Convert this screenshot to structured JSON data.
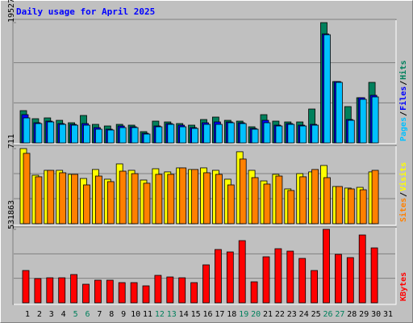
{
  "chart_data": [
    {
      "type": "bar",
      "title": "Daily usage for April 2025",
      "legend_separator": "/",
      "ylim": [
        0,
        19527
      ],
      "yticks": [
        19527
      ],
      "series": [
        {
          "name": "Hits",
          "color": "#00805c",
          "values": [
            5242,
            3932,
            4063,
            3669,
            3276,
            4456,
            3014,
            2752,
            3014,
            2883,
            1835,
            3538,
            3407,
            3145,
            2883,
            3800,
            4194,
            3669,
            3538,
            2621,
            4587,
            3538,
            3407,
            3407,
            5504,
            19527,
            9960,
            5897,
            7339,
            9829,
            null
          ]
        },
        {
          "name": "Files",
          "color": "#0000ff",
          "values": [
            4587,
            3276,
            3538,
            3145,
            3014,
            3145,
            2490,
            2228,
            2752,
            2621,
            1572,
            2752,
            3145,
            2883,
            2490,
            3276,
            3407,
            3407,
            3276,
            2359,
            3669,
            2883,
            3145,
            2883,
            3014,
            17692,
            9960,
            3800,
            7339,
            7732,
            null
          ]
        },
        {
          "name": "Pages",
          "color": "#00c0ff",
          "values": [
            4063,
            3145,
            3407,
            3014,
            2883,
            2883,
            2228,
            2097,
            2490,
            2490,
            1442,
            2621,
            3014,
            2621,
            2359,
            3014,
            3014,
            3276,
            3145,
            2228,
            3276,
            2752,
            3014,
            2752,
            2883,
            17561,
            9829,
            3669,
            7077,
            7470,
            null
          ]
        }
      ]
    },
    {
      "type": "bar",
      "legend_separator": "/",
      "ylim": [
        0,
        711
      ],
      "yticks": [
        711
      ],
      "series": [
        {
          "name": "Visits",
          "color": "#ffff00",
          "values": [
            711,
            459,
            505,
            505,
            467,
            428,
            513,
            421,
            566,
            505,
            413,
            520,
            490,
            528,
            513,
            528,
            505,
            421,
            681,
            505,
            405,
            467,
            329,
            474,
            490,
            551,
            352,
            337,
            344,
            490,
            null
          ]
        },
        {
          "name": "Sites",
          "color": "#ff8000",
          "values": [
            666,
            444,
            505,
            482,
            467,
            367,
            451,
            398,
            497,
            474,
            383,
            467,
            467,
            528,
            513,
            482,
            467,
            367,
            612,
            436,
            375,
            451,
            314,
            444,
            513,
            436,
            352,
            329,
            321,
            505,
            null
          ]
        }
      ]
    },
    {
      "type": "bar",
      "ylim": [
        0,
        531863
      ],
      "yticks": [
        531863
      ],
      "categories": [
        "1",
        "2",
        "3",
        "4",
        "5",
        "6",
        "7",
        "8",
        "9",
        "10",
        "11",
        "12",
        "13",
        "14",
        "15",
        "16",
        "17",
        "18",
        "19",
        "20",
        "21",
        "22",
        "23",
        "24",
        "25",
        "26",
        "27",
        "28",
        "29",
        "30",
        "31"
      ],
      "category_colors": [
        "#000000",
        "#000000",
        "#000000",
        "#000000",
        "#00805c",
        "#00805c",
        "#000000",
        "#000000",
        "#000000",
        "#000000",
        "#000000",
        "#00805c",
        "#00805c",
        "#000000",
        "#000000",
        "#000000",
        "#000000",
        "#000000",
        "#00805c",
        "#00805c",
        "#000000",
        "#000000",
        "#000000",
        "#000000",
        "#000000",
        "#00805c",
        "#00805c",
        "#000000",
        "#000000",
        "#000000",
        "#000000"
      ],
      "series": [
        {
          "name": "KBytes",
          "color": "#ff0000",
          "values": [
            233800,
            175350,
            181195,
            181195,
            204575,
            134435,
            163660,
            163660,
            146125,
            146125,
            122745,
            198730,
            187040,
            181195,
            146125,
            274715,
            385770,
            368235,
            450065,
            151970,
            333165,
            391615,
            374080,
            321475,
            233800,
            531863,
            350700,
            327320,
            490980,
            397460,
            null
          ]
        }
      ]
    }
  ]
}
